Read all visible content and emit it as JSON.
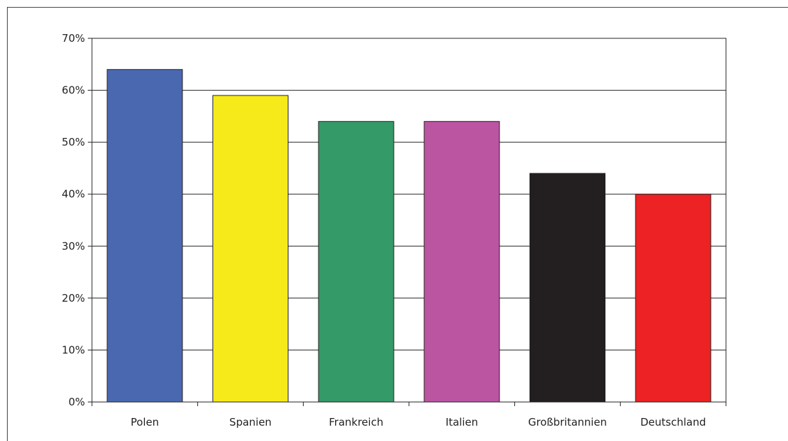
{
  "chart_data": {
    "type": "bar",
    "categories": [
      "Polen",
      "Spanien",
      "Frankreich",
      "Italien",
      "Großbritannien",
      "Deutschland"
    ],
    "values": [
      64,
      59,
      54,
      54,
      44,
      40
    ],
    "colors": [
      "#4a68b0",
      "#f6ea1a",
      "#349a68",
      "#bb55a2",
      "#231f20",
      "#ec2224"
    ],
    "ylim": [
      0,
      70
    ],
    "yticks": [
      0,
      10,
      20,
      30,
      40,
      50,
      60,
      70
    ],
    "ytick_labels": [
      "0%",
      "10%",
      "20%",
      "30%",
      "40%",
      "50%",
      "60%",
      "70%"
    ],
    "grid": true,
    "title": "",
    "xlabel": "",
    "ylabel": ""
  }
}
